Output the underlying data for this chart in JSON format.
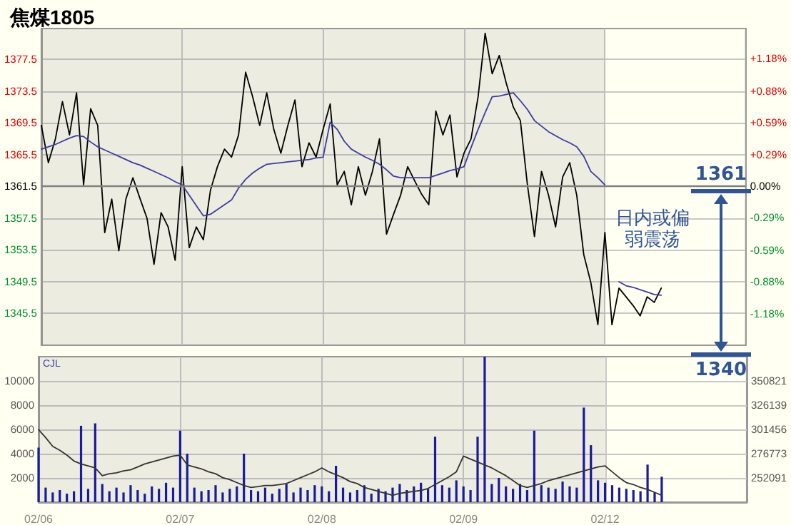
{
  "chart_data": [
    {
      "type": "line",
      "title": "焦煤1805",
      "categories": [
        null,
        null,
        null,
        null,
        null,
        null,
        null,
        null,
        null,
        null,
        null,
        null,
        null,
        null,
        null,
        null,
        null,
        null,
        null,
        null,
        null,
        null,
        null,
        null,
        null,
        null,
        null,
        null,
        null,
        null,
        null,
        null,
        null,
        null,
        null,
        null,
        null,
        null,
        null,
        null,
        null,
        null,
        null,
        null,
        null,
        null,
        null,
        null,
        null,
        null,
        null,
        null,
        null,
        null,
        null,
        null,
        null,
        null,
        null,
        null,
        null,
        null,
        null,
        null,
        null,
        null,
        null,
        null,
        null,
        null,
        null,
        null,
        null,
        null,
        null,
        null,
        null,
        null,
        null,
        null,
        null,
        null,
        null,
        null,
        null,
        null,
        null,
        null,
        null,
        null,
        null,
        null,
        null,
        null,
        null,
        null,
        null,
        null,
        null,
        null,
        null
      ],
      "ylim": [
        1341.5,
        1381.4
      ],
      "yticks": [
        1345.5,
        1349.5,
        1353.5,
        1357.5,
        1361.5,
        1365.5,
        1369.5,
        1373.5,
        1377.5
      ],
      "y2lim": [
        -1.47,
        1.46
      ],
      "y2ticks": [
        {
          "value": -1.18,
          "label": "-1.18%"
        },
        {
          "value": -0.88,
          "label": "-0.88%"
        },
        {
          "value": -0.59,
          "label": "-0.59%"
        },
        {
          "value": -0.29,
          "label": "-0.29%"
        },
        {
          "value": 0,
          "label": "0.00%"
        },
        {
          "value": 0.29,
          "label": "+0.29%"
        },
        {
          "value": 0.59,
          "label": "+0.59%"
        },
        {
          "value": 0.88,
          "label": "+0.88%"
        },
        {
          "value": 1.18,
          "label": "+1.18%"
        }
      ],
      "grid": true,
      "marker": "none",
      "line_style": "solid",
      "ref_lines": [
        {
          "axis": "y",
          "value": 1361.5,
          "color": "#808080"
        }
      ],
      "annotations": [
        "日内或偏弱震荡",
        {
          "text": "1361",
          "y": 1361
        },
        "1340"
      ],
      "series": [
        {
          "color": "#000000",
          "values": [
            1369.2,
            1364.5,
            1367.5,
            1372.2,
            1368,
            1373.3,
            1361.7,
            1371.3,
            1369.2,
            1355.7,
            1359.9,
            1353.4,
            1359.9,
            1362.6,
            1360,
            1357.5,
            1351.7,
            1358.2,
            1356.4,
            1352.2,
            1364,
            1353.8,
            1356.4,
            1354.8,
            1361,
            1364,
            1366.2,
            1365.2,
            1368,
            1375.9,
            1372.8,
            1369.2,
            1373.3,
            1368.7,
            1365.7,
            1369.2,
            1372.4,
            1364,
            1367,
            1365.2,
            1368.7,
            1371.9,
            1361.7,
            1363.4,
            1359.2,
            1364,
            1360.4,
            1363.4,
            1367.5,
            1355.5,
            1358,
            1360.4,
            1364,
            1362.2,
            1360.5,
            1359.2,
            1371,
            1368,
            1370.5,
            1362.7,
            1365.7,
            1367.5,
            1372.8,
            1380.8,
            1375.7,
            1378,
            1374.5,
            1371.5,
            1369.8,
            1361.7,
            1355.2,
            1363.4,
            1360.4,
            1356.4,
            1362.7,
            1364.5,
            1360.4,
            1352.9,
            1349.4,
            1344.1,
            1355.7,
            1344.1,
            1348.7,
            1347.6,
            1346.5,
            1345.2,
            1347.6,
            1346.9,
            1348.7,
            null,
            null,
            null,
            null,
            null,
            null,
            null,
            null,
            null,
            null,
            null,
            null
          ]
        },
        {
          "color": "#3c3ca0",
          "values": [
            1366.2,
            1366.5,
            1366.8,
            1367.2,
            1367.6,
            1367.9,
            1367.8,
            1367.1,
            1366.5,
            1366.1,
            1365.7,
            1365.3,
            1364.9,
            1364.5,
            1364.2,
            1363.8,
            1363.4,
            1363,
            1362.6,
            1362.1,
            1361.7,
            1360.4,
            1359.1,
            1357.8,
            1358,
            1358.6,
            1359.2,
            1359.8,
            1361.3,
            1362.4,
            1363.2,
            1363.8,
            1364.3,
            1364.4,
            1364.5,
            1364.6,
            1364.7,
            1364.8,
            1364.9,
            1365.1,
            1365.2,
            1369.6,
            1368.7,
            1367.2,
            1366.2,
            1365.7,
            1365.2,
            1364.8,
            1364.3,
            1363.6,
            1362.8,
            1362.6,
            1362.6,
            1362.6,
            1362.6,
            1362.6,
            1362.9,
            1363.2,
            1363.5,
            1363.7,
            1364,
            1366.4,
            1368.7,
            1370.8,
            1372.8,
            1372.9,
            1373.1,
            1373.3,
            1372.3,
            1371.2,
            1369.8,
            1369.1,
            1368.4,
            1367.9,
            1367.4,
            1367,
            1366.5,
            1365.3,
            1363.4,
            1362.6,
            1361.7,
            null,
            1349.5,
            1349,
            1348.8,
            1348.5,
            1348.2,
            1347.9,
            1347.8,
            null,
            null,
            null,
            null,
            null,
            null,
            null,
            null,
            null,
            null,
            null,
            null
          ]
        }
      ]
    },
    {
      "type": "bar",
      "categories": [
        "02/06",
        null,
        null,
        null,
        null,
        null,
        null,
        null,
        null,
        null,
        null,
        null,
        null,
        null,
        null,
        null,
        null,
        null,
        null,
        null,
        "02/07",
        null,
        null,
        null,
        null,
        null,
        null,
        null,
        null,
        null,
        null,
        null,
        null,
        null,
        null,
        null,
        null,
        null,
        null,
        null,
        "02/08",
        null,
        null,
        null,
        null,
        null,
        null,
        null,
        null,
        null,
        null,
        null,
        null,
        null,
        null,
        null,
        null,
        null,
        null,
        null,
        "02/09",
        null,
        null,
        null,
        null,
        null,
        null,
        null,
        null,
        null,
        null,
        null,
        null,
        null,
        null,
        null,
        null,
        null,
        null,
        null,
        "02/12",
        null,
        null,
        null,
        null,
        null,
        null,
        null,
        null,
        null,
        null,
        null,
        null,
        null,
        null,
        null,
        null,
        null,
        null,
        null,
        null
      ],
      "ylim": [
        0,
        12000
      ],
      "yticks": [
        2000,
        4000,
        6000,
        8000,
        10000
      ],
      "y2lim": [
        227000,
        375500
      ],
      "y2ticks": [
        252091,
        276773,
        301456,
        326139,
        350821
      ],
      "grid": true,
      "marker": "none",
      "line_style": "solid",
      "annotations": [
        "CJL"
      ],
      "series": [
        {
          "color": "#1a1a9c",
          "values": [
            4500,
            1200,
            800,
            1000,
            700,
            900,
            6300,
            1100,
            6500,
            1500,
            900,
            1200,
            800,
            1400,
            1000,
            700,
            1300,
            1100,
            1600,
            1200,
            5900,
            4000,
            1200,
            900,
            1000,
            1400,
            800,
            1100,
            1300,
            4000,
            1000,
            900,
            1200,
            700,
            1100,
            1500,
            800,
            1200,
            1000,
            1400,
            1300,
            900,
            3000,
            1200,
            800,
            1000,
            1400,
            700,
            1100,
            900,
            1200,
            1500,
            1000,
            1300,
            1600,
            1100,
            5400,
            1400,
            1200,
            1800,
            1300,
            1000,
            5400,
            12000,
            1500,
            2000,
            1300,
            1100,
            1500,
            1000,
            5900,
            1400,
            1200,
            1100,
            1700,
            1300,
            1200,
            7800,
            4700,
            1800,
            1600,
            1400,
            1200,
            1100,
            1000,
            900,
            3100,
            800,
            2100,
            null,
            null,
            null,
            null,
            null,
            null,
            null,
            null,
            null,
            null,
            null,
            null
          ]
        },
        {
          "type": "line",
          "axis": "y2",
          "color": "#333333",
          "values": [
            301000,
            293000,
            284000,
            280000,
            275000,
            269000,
            266000,
            264000,
            262000,
            254000,
            256000,
            257000,
            259000,
            260000,
            263000,
            266000,
            268000,
            270000,
            272000,
            274000,
            275000,
            265000,
            263000,
            261000,
            258000,
            256000,
            252000,
            250000,
            247000,
            244000,
            242000,
            243000,
            244000,
            244000,
            245000,
            246000,
            249000,
            252000,
            255000,
            258000,
            262000,
            258000,
            255000,
            252000,
            248000,
            246000,
            242000,
            240000,
            238000,
            236000,
            234000,
            236000,
            237000,
            238000,
            239000,
            241000,
            245000,
            249000,
            253000,
            258000,
            274000,
            271000,
            268000,
            265000,
            262000,
            258000,
            254000,
            249000,
            244000,
            242000,
            244000,
            246000,
            249000,
            251000,
            253000,
            255000,
            257000,
            259000,
            261000,
            263000,
            264000,
            258000,
            252000,
            247000,
            245000,
            242000,
            240000,
            237000,
            234000,
            null,
            null,
            null,
            null,
            null,
            null,
            null,
            null,
            null,
            null,
            null,
            null
          ]
        }
      ]
    }
  ]
}
